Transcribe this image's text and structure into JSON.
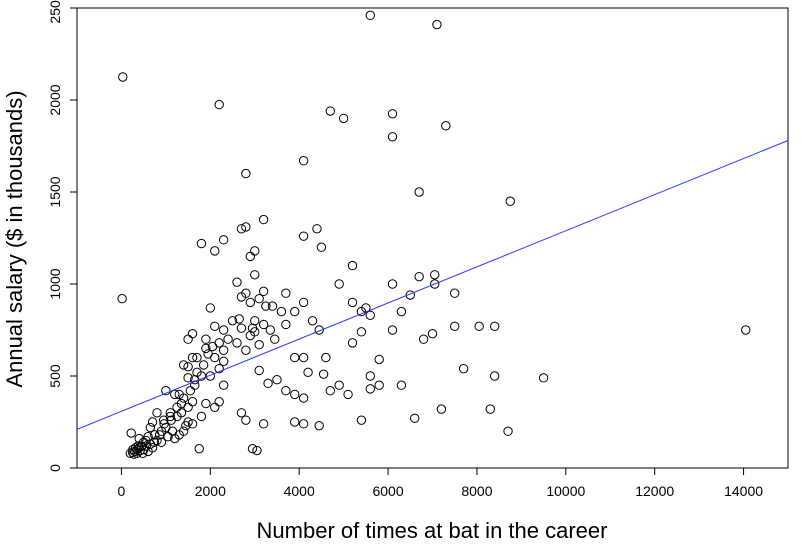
{
  "chart_data": {
    "type": "scatter",
    "title": "",
    "xlabel": "Number of times at bat in the career",
    "ylabel": "Annual salary ($ in thousands)",
    "xlim": [
      -1000,
      15000
    ],
    "ylim": [
      0,
      2500
    ],
    "x_ticks": [
      0,
      2000,
      4000,
      6000,
      8000,
      10000,
      12000,
      14000
    ],
    "y_ticks": [
      0,
      500,
      1000,
      1500,
      2000,
      2500
    ],
    "x_tick_labels": [
      "0",
      "2000",
      "4000",
      "6000",
      "8000",
      "10000",
      "12000",
      "14000"
    ],
    "y_tick_labels": [
      "0",
      "500",
      "1000",
      "1500",
      "2000",
      "2500"
    ],
    "grid": false,
    "legend": "none",
    "point_style": "open circle",
    "colors": {
      "points": "#000000",
      "regression_line": "#2a35ff"
    },
    "regression_line": {
      "x": [
        -1000,
        15000
      ],
      "y": [
        210,
        1780
      ]
    },
    "points": [
      [
        30,
        2125
      ],
      [
        15,
        920
      ],
      [
        2200,
        1975
      ],
      [
        5600,
        2460
      ],
      [
        7100,
        2410
      ],
      [
        4700,
        1940
      ],
      [
        5000,
        1900
      ],
      [
        6100,
        1925
      ],
      [
        7300,
        1860
      ],
      [
        6100,
        1800
      ],
      [
        4100,
        1670
      ],
      [
        2800,
        1600
      ],
      [
        6700,
        1500
      ],
      [
        8750,
        1450
      ],
      [
        3200,
        1350
      ],
      [
        2300,
        1240
      ],
      [
        2800,
        1310
      ],
      [
        2700,
        1300
      ],
      [
        4400,
        1300
      ],
      [
        4100,
        1260
      ],
      [
        1800,
        1220
      ],
      [
        4500,
        1200
      ],
      [
        3000,
        1180
      ],
      [
        2100,
        1180
      ],
      [
        2900,
        1150
      ],
      [
        5200,
        1100
      ],
      [
        3000,
        1050
      ],
      [
        7050,
        1050
      ],
      [
        6700,
        1040
      ],
      [
        2600,
        1010
      ],
      [
        4900,
        1000
      ],
      [
        6100,
        1000
      ],
      [
        7050,
        1000
      ],
      [
        3200,
        960
      ],
      [
        2800,
        950
      ],
      [
        3700,
        950
      ],
      [
        7500,
        950
      ],
      [
        6500,
        940
      ],
      [
        2700,
        930
      ],
      [
        3100,
        920
      ],
      [
        2900,
        900
      ],
      [
        4100,
        900
      ],
      [
        5200,
        900
      ],
      [
        3400,
        880
      ],
      [
        2000,
        870
      ],
      [
        5500,
        870
      ],
      [
        5400,
        850
      ],
      [
        6300,
        850
      ],
      [
        3600,
        850
      ],
      [
        3900,
        850
      ],
      [
        5600,
        830
      ],
      [
        2500,
        800
      ],
      [
        3000,
        800
      ],
      [
        2650,
        810
      ],
      [
        4300,
        800
      ],
      [
        3200,
        780
      ],
      [
        3700,
        780
      ],
      [
        2100,
        770
      ],
      [
        2700,
        760
      ],
      [
        2300,
        750
      ],
      [
        7500,
        770
      ],
      [
        8050,
        770
      ],
      [
        8400,
        770
      ],
      [
        3000,
        740
      ],
      [
        3350,
        750
      ],
      [
        4450,
        750
      ],
      [
        5400,
        740
      ],
      [
        6100,
        750
      ],
      [
        7000,
        730
      ],
      [
        1600,
        730
      ],
      [
        1500,
        700
      ],
      [
        2900,
        720
      ],
      [
        3450,
        700
      ],
      [
        6800,
        700
      ],
      [
        2200,
        680
      ],
      [
        3100,
        670
      ],
      [
        5200,
        680
      ],
      [
        1900,
        650
      ],
      [
        2800,
        640
      ],
      [
        2300,
        640
      ],
      [
        4100,
        600
      ],
      [
        4600,
        600
      ],
      [
        5800,
        590
      ],
      [
        1700,
        600
      ],
      [
        3900,
        600
      ],
      [
        1600,
        600
      ],
      [
        2100,
        600
      ],
      [
        2300,
        580
      ],
      [
        5600,
        500
      ],
      [
        7700,
        540
      ],
      [
        1400,
        560
      ],
      [
        1500,
        550
      ],
      [
        2200,
        540
      ],
      [
        3100,
        530
      ],
      [
        4200,
        520
      ],
      [
        4550,
        510
      ],
      [
        5800,
        450
      ],
      [
        8400,
        500
      ],
      [
        9500,
        490
      ],
      [
        1700,
        520
      ],
      [
        1800,
        500
      ],
      [
        2000,
        500
      ],
      [
        1500,
        490
      ],
      [
        3500,
        480
      ],
      [
        3300,
        460
      ],
      [
        4700,
        420
      ],
      [
        4900,
        450
      ],
      [
        5600,
        430
      ],
      [
        6300,
        450
      ],
      [
        3700,
        420
      ],
      [
        3900,
        400
      ],
      [
        4100,
        380
      ],
      [
        5100,
        400
      ],
      [
        1200,
        400
      ],
      [
        1000,
        420
      ],
      [
        1400,
        380
      ],
      [
        1600,
        360
      ],
      [
        1900,
        350
      ],
      [
        2100,
        330
      ],
      [
        2200,
        360
      ],
      [
        8300,
        320
      ],
      [
        7200,
        320
      ],
      [
        2700,
        300
      ],
      [
        2800,
        260
      ],
      [
        3200,
        240
      ],
      [
        3900,
        250
      ],
      [
        4100,
        240
      ],
      [
        4450,
        230
      ],
      [
        5400,
        260
      ],
      [
        6600,
        270
      ],
      [
        8700,
        200
      ],
      [
        14050,
        750
      ],
      [
        1750,
        105
      ],
      [
        2950,
        105
      ],
      [
        3050,
        95
      ],
      [
        1100,
        300
      ],
      [
        1250,
        280
      ],
      [
        1350,
        300
      ],
      [
        950,
        260
      ],
      [
        800,
        300
      ],
      [
        1000,
        220
      ],
      [
        1150,
        200
      ],
      [
        1300,
        180
      ],
      [
        1450,
        230
      ],
      [
        1500,
        250
      ],
      [
        900,
        200
      ],
      [
        700,
        250
      ],
      [
        650,
        220
      ],
      [
        750,
        180
      ],
      [
        600,
        170
      ],
      [
        550,
        150
      ],
      [
        500,
        140
      ],
      [
        450,
        120
      ],
      [
        400,
        110
      ],
      [
        350,
        100
      ],
      [
        300,
        90
      ],
      [
        250,
        85
      ],
      [
        200,
        80
      ],
      [
        220,
        190
      ],
      [
        400,
        160
      ],
      [
        800,
        150
      ],
      [
        650,
        130
      ],
      [
        500,
        100
      ],
      [
        350,
        80
      ],
      [
        280,
        75
      ],
      [
        320,
        110
      ],
      [
        420,
        95
      ],
      [
        560,
        120
      ],
      [
        700,
        110
      ],
      [
        900,
        140
      ],
      [
        1050,
        170
      ],
      [
        1200,
        160
      ],
      [
        1400,
        200
      ],
      [
        1600,
        240
      ],
      [
        1800,
        280
      ],
      [
        600,
        90
      ],
      [
        480,
        80
      ],
      [
        380,
        120
      ],
      [
        260,
        100
      ],
      [
        860,
        180
      ],
      [
        960,
        240
      ],
      [
        1120,
        260
      ],
      [
        1250,
        330
      ],
      [
        1350,
        350
      ],
      [
        1500,
        330
      ],
      [
        1650,
        450
      ],
      [
        1550,
        420
      ],
      [
        1300,
        400
      ],
      [
        1100,
        280
      ],
      [
        740,
        140
      ],
      [
        1900,
        700
      ],
      [
        1950,
        620
      ],
      [
        2050,
        660
      ],
      [
        2300,
        450
      ],
      [
        2400,
        700
      ],
      [
        2600,
        680
      ],
      [
        2950,
        760
      ],
      [
        3250,
        880
      ],
      [
        1850,
        560
      ],
      [
        1650,
        480
      ]
    ]
  }
}
